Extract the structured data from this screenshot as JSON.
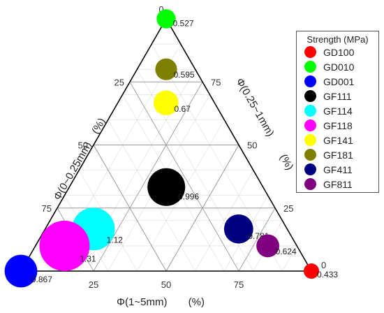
{
  "chart_data": {
    "type": "scatter",
    "plot_kind": "ternary bubble",
    "axes": {
      "bottom": {
        "label": "Φ(1~5mm)",
        "unit": "(%)",
        "ticks": [
          "25",
          "50",
          "75"
        ]
      },
      "left": {
        "label": "Φ(0~0.25mm)",
        "unit": "(%)",
        "ticks": [
          "25",
          "50",
          "75"
        ]
      },
      "right": {
        "label": "Φ(0.25~1mm)",
        "unit": "(%)",
        "ticks": [
          "75",
          "50",
          "25"
        ]
      },
      "corner_zero_labels": [
        "0",
        "0",
        "0"
      ]
    },
    "grid": true,
    "legend": {
      "title": "Strength (MPa)",
      "placement": "right"
    },
    "series": [
      {
        "name": "GD100",
        "color": "#ff0000",
        "fine": 0,
        "medium": 0,
        "coarse": 100,
        "strength": 0.433,
        "label": "0.433"
      },
      {
        "name": "GD010",
        "color": "#00ff00",
        "fine": 0,
        "medium": 100,
        "coarse": 0,
        "strength": 0.527,
        "label": "0.527"
      },
      {
        "name": "GD001",
        "color": "#0000ff",
        "fine": 100,
        "medium": 0,
        "coarse": 0,
        "strength": 0.867,
        "label": "0.867"
      },
      {
        "name": "GF111",
        "color": "#000000",
        "fine": 33.3,
        "medium": 33.3,
        "coarse": 33.4,
        "strength": 0.996,
        "label": "0.996"
      },
      {
        "name": "GF114",
        "color": "#00ffff",
        "fine": 66.7,
        "medium": 16.7,
        "coarse": 16.6,
        "strength": 1.12,
        "label": "1.12"
      },
      {
        "name": "GF118",
        "color": "#ff00ff",
        "fine": 80,
        "medium": 10,
        "coarse": 10,
        "strength": 1.31,
        "label": "1.31"
      },
      {
        "name": "GF141",
        "color": "#ffff00",
        "fine": 16.7,
        "medium": 66.7,
        "coarse": 16.6,
        "strength": 0.67,
        "label": "0.67"
      },
      {
        "name": "GF181",
        "color": "#808000",
        "fine": 10,
        "medium": 80,
        "coarse": 10,
        "strength": 0.595,
        "label": "0.595"
      },
      {
        "name": "GF411",
        "color": "#000080",
        "fine": 16.7,
        "medium": 16.7,
        "coarse": 66.6,
        "strength": 0.781,
        "label": "0.781"
      },
      {
        "name": "GF811",
        "color": "#800080",
        "fine": 10,
        "medium": 10,
        "coarse": 80,
        "strength": 0.624,
        "label": "0.624"
      }
    ]
  }
}
